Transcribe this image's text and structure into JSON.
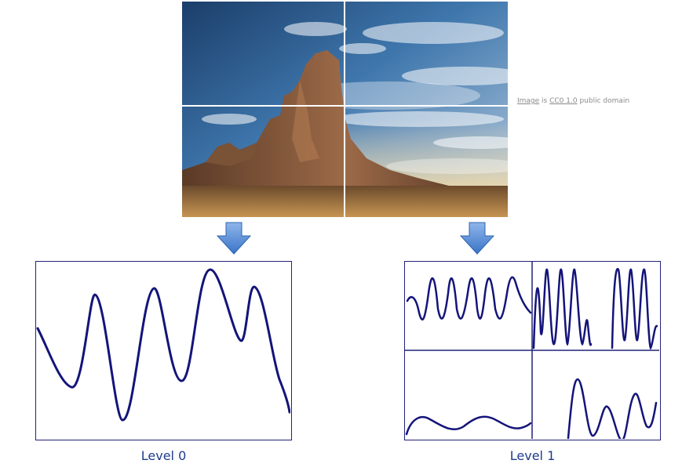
{
  "image": {
    "description_icon": "desert-butte-photo",
    "grid_rows": 2,
    "grid_cols": 2
  },
  "credit": {
    "link_image": "Image",
    "text_is": " is ",
    "link_license": "CC0 1.0",
    "text_suffix": " public domain"
  },
  "arrows": {
    "icon": "down-arrow-icon",
    "color": "#4a86d8"
  },
  "levels": [
    {
      "label": "Level 0"
    },
    {
      "label": "Level 1"
    }
  ],
  "colors": {
    "curve": "#14147a",
    "frame": "#22227a",
    "label": "#1f3c8c"
  }
}
